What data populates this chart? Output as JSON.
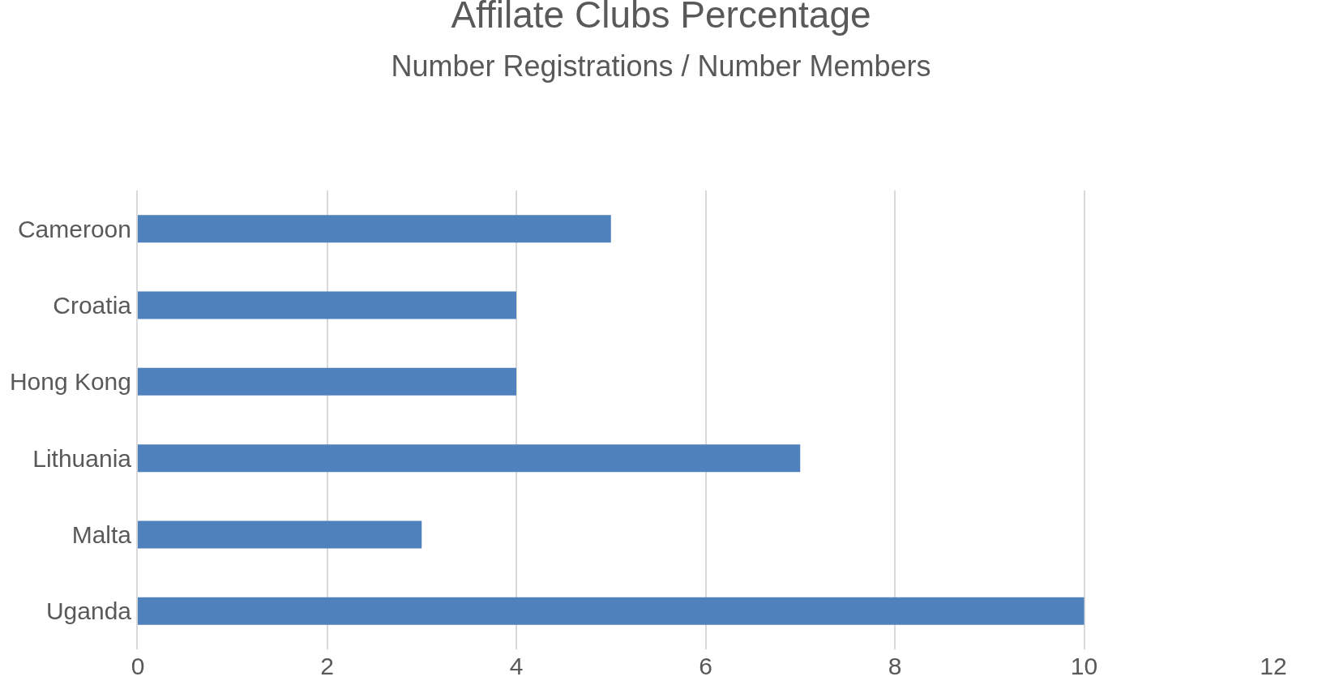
{
  "chart_data": {
    "type": "bar",
    "orientation": "horizontal",
    "title": "Affilate Clubs Percentage",
    "subtitle": "Number Registrations / Number Members",
    "categories": [
      "Cameroon",
      "Croatia",
      "Hong Kong",
      "Lithuania",
      "Malta",
      "Uganda"
    ],
    "values": [
      5,
      4,
      4,
      7,
      3,
      10
    ],
    "color": "#4f81bd",
    "xlim": [
      0,
      12
    ],
    "xticks": [
      0,
      2,
      4,
      6,
      8,
      10,
      12
    ],
    "grid": "x",
    "legend": false
  }
}
